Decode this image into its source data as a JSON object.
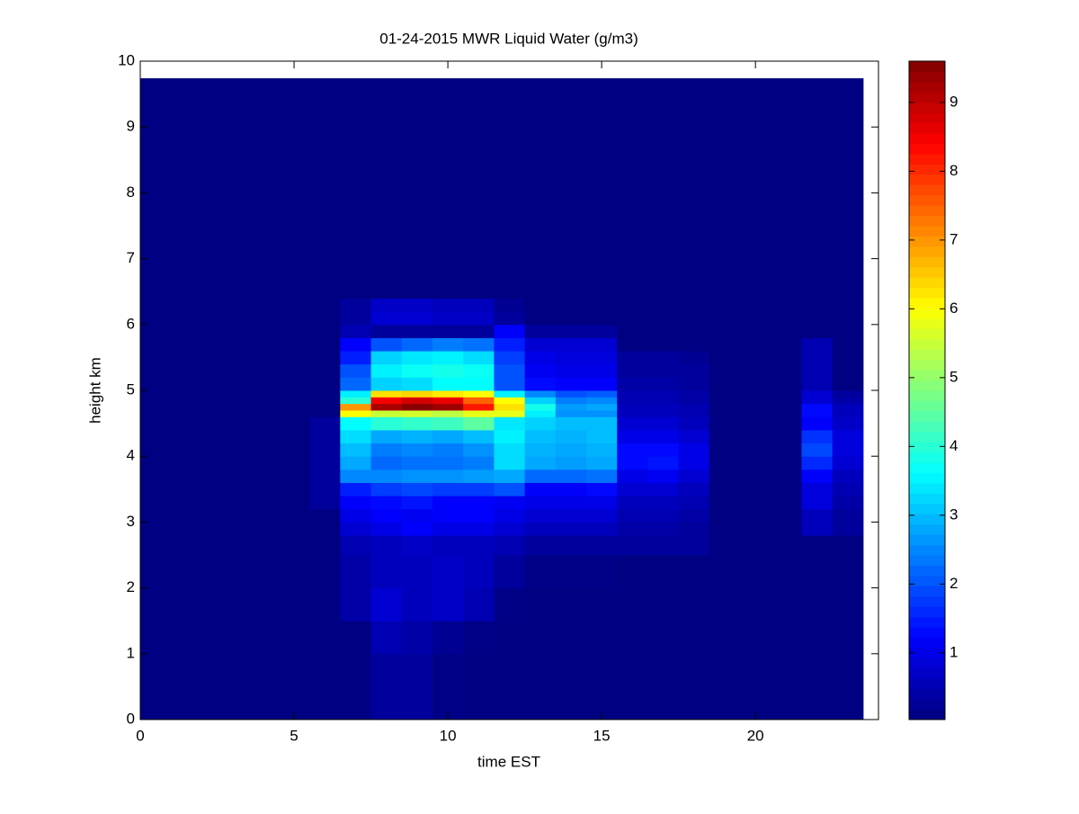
{
  "chart_data": {
    "type": "heatmap",
    "title": "01-24-2015 MWR Liquid Water (g/m3)",
    "x_label": "time EST",
    "y_label": "height km",
    "xlim": [
      0,
      24
    ],
    "ylim": [
      0,
      10
    ],
    "xticks": [
      0,
      5,
      10,
      15,
      20
    ],
    "yticks": [
      0,
      1,
      2,
      3,
      4,
      5,
      6,
      7,
      8,
      9,
      10
    ],
    "x_bins": [
      0,
      0.5,
      1.5,
      2.5,
      3.5,
      4.5,
      5.5,
      6.5,
      7.5,
      8.5,
      9.5,
      10.5,
      11.5,
      12.5,
      13.5,
      14.5,
      15.5,
      16.5,
      17.5,
      18.5,
      19.5,
      20.5,
      21.5,
      22.5,
      23.5
    ],
    "y_bins": [
      0,
      1,
      1.5,
      2,
      2.5,
      2.8,
      3.0,
      3.2,
      3.4,
      3.6,
      3.8,
      4.0,
      4.2,
      4.4,
      4.6,
      4.7,
      4.8,
      4.9,
      5.0,
      5.2,
      5.4,
      5.6,
      5.8,
      6.0,
      6.2,
      6.4,
      7,
      9.74
    ],
    "z": [
      [
        0.05,
        0.05,
        0.05,
        0.05,
        0.05,
        0.05,
        0.05,
        0.05,
        0.05,
        0.05,
        0.05,
        0.05,
        0.05,
        0.05,
        0.05,
        0.05,
        0.05,
        0.05,
        0.05,
        0.05,
        0.05,
        0.05,
        0.05,
        0.05,
        0.05,
        0.05,
        0.05
      ],
      [
        0.05,
        0.05,
        0.05,
        0.05,
        0.05,
        0.05,
        0.05,
        0.05,
        0.05,
        0.05,
        0.05,
        0.05,
        0.05,
        0.05,
        0.05,
        0.05,
        0.05,
        0.05,
        0.05,
        0.05,
        0.05,
        0.05,
        0.05,
        0.05,
        0.05,
        0.05,
        0.05
      ],
      [
        0.05,
        0.05,
        0.05,
        0.05,
        0.05,
        0.05,
        0.05,
        0.05,
        0.05,
        0.05,
        0.05,
        0.05,
        0.05,
        0.05,
        0.05,
        0.05,
        0.05,
        0.05,
        0.05,
        0.05,
        0.05,
        0.05,
        0.05,
        0.05,
        0.05,
        0.05,
        0.05
      ],
      [
        0.05,
        0.05,
        0.05,
        0.05,
        0.05,
        0.05,
        0.05,
        0.05,
        0.05,
        0.05,
        0.05,
        0.05,
        0.05,
        0.05,
        0.05,
        0.05,
        0.05,
        0.05,
        0.05,
        0.05,
        0.05,
        0.05,
        0.05,
        0.05,
        0.05,
        0.05,
        0.05
      ],
      [
        0.05,
        0.05,
        0.05,
        0.05,
        0.05,
        0.05,
        0.05,
        0.05,
        0.05,
        0.05,
        0.05,
        0.05,
        0.05,
        0.05,
        0.05,
        0.05,
        0.05,
        0.05,
        0.05,
        0.05,
        0.05,
        0.05,
        0.05,
        0.05,
        0.05,
        0.05,
        0.05
      ],
      [
        0.05,
        0.05,
        0.05,
        0.05,
        0.05,
        0.05,
        0.05,
        0.05,
        0.05,
        0.05,
        0.05,
        0.05,
        0.05,
        0.05,
        0.05,
        0.05,
        0.05,
        0.05,
        0.05,
        0.05,
        0.05,
        0.05,
        0.05,
        0.05,
        0.05,
        0.05,
        0.05
      ],
      [
        0.05,
        0.05,
        0.05,
        0.05,
        0.05,
        0.05,
        0.05,
        0.3,
        0.3,
        0.3,
        0.3,
        0.3,
        0.3,
        0.3,
        0.05,
        0.05,
        0.05,
        0.05,
        0.05,
        0.05,
        0.05,
        0.05,
        0.05,
        0.05,
        0.05,
        0.05,
        0.05
      ],
      [
        0.05,
        0.05,
        0.4,
        0.4,
        0.5,
        0.8,
        1.0,
        1.2,
        1.5,
        2.5,
        2.8,
        3.0,
        3.3,
        3.6,
        6.0,
        7.0,
        4.0,
        3.5,
        2.2,
        2.0,
        1.5,
        1.2,
        0.5,
        0.3,
        0.3,
        0.05,
        0.05
      ],
      [
        0.3,
        0.5,
        0.8,
        0.6,
        0.6,
        1.0,
        1.2,
        1.3,
        1.8,
        2.5,
        2.2,
        2.4,
        2.8,
        4.0,
        5.5,
        9.2,
        8.5,
        6.3,
        3.2,
        3.5,
        3.2,
        2.0,
        0.3,
        0.8,
        0.7,
        0.05,
        0.05
      ],
      [
        0.3,
        0.4,
        0.6,
        0.6,
        0.7,
        1.2,
        1.1,
        1.4,
        1.9,
        2.6,
        2.3,
        2.5,
        2.9,
        4.1,
        5.6,
        9.5,
        8.8,
        6.4,
        3.3,
        3.7,
        3.4,
        2.2,
        0.3,
        0.8,
        0.7,
        0.05,
        0.05
      ],
      [
        0.1,
        0.2,
        0.7,
        0.7,
        0.6,
        1.0,
        1.2,
        1.2,
        1.8,
        2.6,
        2.3,
        2.4,
        2.8,
        4.2,
        5.4,
        9.3,
        8.6,
        6.2,
        3.6,
        3.8,
        3.5,
        2.4,
        0.3,
        0.7,
        0.6,
        0.05,
        0.05
      ],
      [
        0.05,
        0.1,
        0.5,
        0.6,
        0.6,
        1.0,
        1.2,
        1.2,
        1.8,
        2.7,
        2.4,
        2.6,
        3.0,
        4.5,
        5.8,
        8.2,
        7.5,
        6.0,
        3.6,
        3.7,
        3.3,
        2.3,
        0.3,
        0.7,
        0.6,
        0.05,
        0.05
      ],
      [
        0.05,
        0.05,
        0.1,
        0.3,
        0.5,
        0.8,
        1.0,
        1.1,
        2.0,
        2.8,
        3.3,
        3.3,
        3.5,
        3.4,
        5.8,
        6.3,
        6.0,
        3.5,
        2.0,
        2.0,
        1.8,
        1.5,
        1.2,
        0.3,
        0.2,
        0.05,
        0.05
      ],
      [
        0.05,
        0.05,
        0.05,
        0.1,
        0.3,
        0.6,
        0.8,
        1.0,
        1.2,
        2.2,
        2.8,
        2.9,
        3.0,
        3.2,
        3.5,
        3.8,
        3.2,
        2.5,
        1.3,
        1.1,
        1.0,
        0.8,
        0.3,
        0.05,
        0.05,
        0.05,
        0.05
      ],
      [
        0.05,
        0.05,
        0.05,
        0.1,
        0.3,
        0.6,
        0.8,
        1.0,
        1.2,
        2.2,
        2.7,
        2.8,
        2.9,
        3.0,
        2.6,
        2.7,
        2.4,
        2.0,
        1.2,
        1.0,
        0.9,
        0.8,
        0.3,
        0.05,
        0.05,
        0.05,
        0.05
      ],
      [
        0.05,
        0.05,
        0.05,
        0.1,
        0.3,
        0.6,
        0.8,
        1.0,
        1.3,
        2.3,
        2.8,
        2.9,
        3.0,
        3.0,
        2.6,
        2.8,
        2.5,
        2.1,
        1.2,
        1.0,
        0.9,
        0.8,
        0.3,
        0.05,
        0.05,
        0.05,
        0.05
      ],
      [
        0.05,
        0.05,
        0.05,
        0.05,
        0.3,
        0.4,
        0.5,
        0.6,
        0.8,
        1.0,
        1.3,
        1.3,
        1.0,
        0.8,
        0.6,
        0.6,
        0.5,
        0.5,
        0.4,
        0.3,
        0.3,
        0.05,
        0.05,
        0.05,
        0.05,
        0.05,
        0.05
      ],
      [
        0.05,
        0.05,
        0.05,
        0.05,
        0.3,
        0.4,
        0.5,
        0.6,
        0.8,
        1.1,
        1.4,
        1.3,
        1.0,
        0.8,
        0.6,
        0.6,
        0.5,
        0.5,
        0.4,
        0.3,
        0.3,
        0.05,
        0.05,
        0.05,
        0.05,
        0.05,
        0.05
      ],
      [
        0.05,
        0.05,
        0.05,
        0.05,
        0.3,
        0.3,
        0.4,
        0.5,
        0.6,
        0.8,
        1.0,
        1.0,
        0.8,
        0.6,
        0.5,
        0.5,
        0.4,
        0.4,
        0.3,
        0.3,
        0.2,
        0.05,
        0.05,
        0.05,
        0.05,
        0.05,
        0.05
      ],
      [
        0.05,
        0.05,
        0.05,
        0.05,
        0.05,
        0.05,
        0.05,
        0.05,
        0.05,
        0.05,
        0.05,
        0.05,
        0.05,
        0.05,
        0.05,
        0.05,
        0.05,
        0.05,
        0.05,
        0.05,
        0.05,
        0.05,
        0.05,
        0.05,
        0.05,
        0.05,
        0.05
      ],
      [
        0.05,
        0.05,
        0.05,
        0.05,
        0.05,
        0.05,
        0.05,
        0.05,
        0.05,
        0.05,
        0.05,
        0.05,
        0.05,
        0.05,
        0.05,
        0.05,
        0.05,
        0.05,
        0.05,
        0.05,
        0.05,
        0.05,
        0.05,
        0.05,
        0.05,
        0.05,
        0.05
      ],
      [
        0.05,
        0.05,
        0.05,
        0.05,
        0.05,
        0.05,
        0.05,
        0.05,
        0.05,
        0.05,
        0.05,
        0.05,
        0.05,
        0.05,
        0.05,
        0.05,
        0.05,
        0.05,
        0.05,
        0.05,
        0.05,
        0.05,
        0.05,
        0.05,
        0.05,
        0.05,
        0.05
      ],
      [
        0.05,
        0.05,
        0.05,
        0.05,
        0.05,
        0.6,
        0.6,
        0.9,
        0.9,
        1.2,
        1.6,
        1.9,
        1.7,
        1.2,
        1.3,
        1.3,
        0.8,
        0.8,
        0.5,
        0.5,
        0.5,
        0.5,
        0.05,
        0.05,
        0.05,
        0.05,
        0.05
      ],
      [
        0.05,
        0.05,
        0.05,
        0.05,
        0.05,
        0.3,
        0.3,
        0.4,
        0.5,
        0.6,
        0.8,
        0.9,
        0.9,
        0.7,
        0.6,
        0.6,
        0.4,
        0.3,
        0.05,
        0.05,
        0.05,
        0.05,
        0.05,
        0.05,
        0.05,
        0.05,
        0.05
      ]
    ],
    "colorbar": {
      "clim": [
        0.03,
        9.6
      ],
      "ticks": [
        1,
        2,
        3,
        4,
        5,
        6,
        7,
        8,
        9
      ]
    }
  }
}
